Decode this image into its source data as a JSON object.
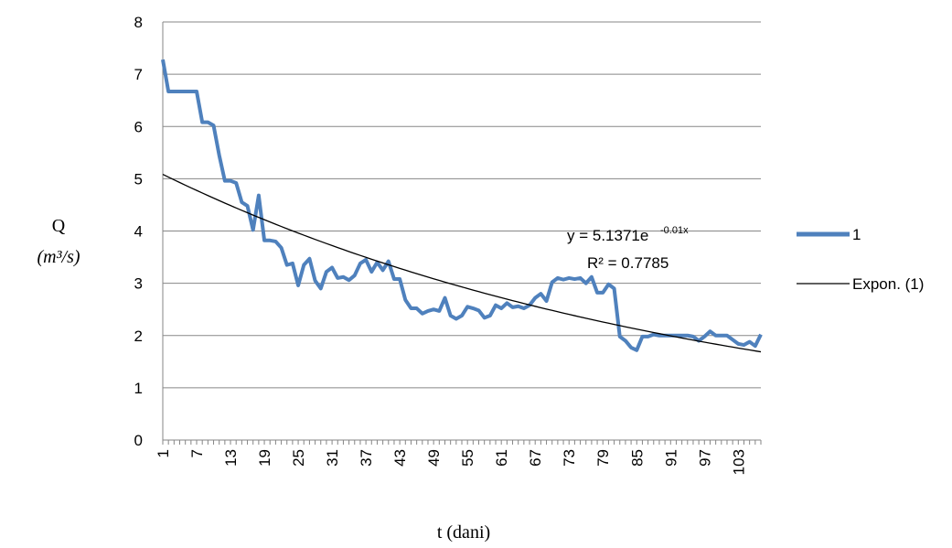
{
  "chart_data": {
    "type": "line",
    "title": "",
    "xlabel": "t (dani)",
    "ylabel": "Q",
    "ylabel_unit": "(m³/s)",
    "ylim": [
      0,
      8
    ],
    "yticks": [
      0,
      1,
      2,
      3,
      4,
      5,
      6,
      7,
      8
    ],
    "xlim": [
      1,
      107
    ],
    "xtick_labels": [
      "1",
      "7",
      "13",
      "19",
      "25",
      "31",
      "37",
      "43",
      "49",
      "55",
      "61",
      "67",
      "73",
      "79",
      "85",
      "91",
      "97",
      "103"
    ],
    "grid": "horizontal",
    "legend_position": "right",
    "series": [
      {
        "name": "1",
        "color": "#4f81bd",
        "x": [
          1,
          2,
          3,
          4,
          5,
          6,
          7,
          8,
          9,
          10,
          11,
          12,
          13,
          14,
          15,
          16,
          17,
          18,
          19,
          20,
          21,
          22,
          23,
          24,
          25,
          26,
          27,
          28,
          29,
          30,
          31,
          32,
          33,
          34,
          35,
          36,
          37,
          38,
          39,
          40,
          41,
          42,
          43,
          44,
          45,
          46,
          47,
          48,
          49,
          50,
          51,
          52,
          53,
          54,
          55,
          56,
          57,
          58,
          59,
          60,
          61,
          62,
          63,
          64,
          65,
          66,
          67,
          68,
          69,
          70,
          71,
          72,
          73,
          74,
          75,
          76,
          77,
          78,
          79,
          80,
          81,
          82,
          83,
          84,
          85,
          86,
          87,
          88,
          89,
          90,
          91,
          92,
          93,
          94,
          95,
          96,
          97,
          98,
          99,
          100,
          101,
          102,
          103,
          104,
          105,
          106,
          107
        ],
        "y": [
          7.28,
          6.67,
          6.67,
          6.67,
          6.67,
          6.67,
          6.67,
          6.08,
          6.08,
          6.02,
          5.45,
          4.96,
          4.96,
          4.92,
          4.55,
          4.48,
          4.02,
          4.68,
          3.82,
          3.82,
          3.8,
          3.68,
          3.35,
          3.38,
          2.96,
          3.35,
          3.47,
          3.05,
          2.9,
          3.22,
          3.3,
          3.1,
          3.12,
          3.06,
          3.15,
          3.38,
          3.45,
          3.22,
          3.4,
          3.25,
          3.42,
          3.08,
          3.08,
          2.68,
          2.52,
          2.52,
          2.42,
          2.47,
          2.5,
          2.47,
          2.72,
          2.38,
          2.32,
          2.38,
          2.55,
          2.52,
          2.48,
          2.34,
          2.38,
          2.58,
          2.52,
          2.62,
          2.54,
          2.56,
          2.52,
          2.58,
          2.72,
          2.8,
          2.66,
          3.02,
          3.1,
          3.07,
          3.1,
          3.08,
          3.1,
          3.0,
          3.12,
          2.82,
          2.82,
          2.98,
          2.9,
          1.98,
          1.9,
          1.77,
          1.72,
          1.98,
          1.98,
          2.02,
          2.0,
          2.0,
          2.0,
          2.0,
          2.0,
          2.0,
          1.98,
          1.9,
          1.98,
          2.08,
          2.0,
          2.0,
          2.0,
          1.92,
          1.84,
          1.82,
          1.88,
          1.8,
          2.02
        ]
      },
      {
        "name": "Expon. (1)",
        "color": "#000000",
        "function": "exponential",
        "a": 5.1371,
        "b": -0.0104
      }
    ],
    "annotations": {
      "equation": {
        "prefix": "y = 5.1371e",
        "exponent": "-0.01x"
      },
      "r_squared": "R² = 0.7785"
    }
  }
}
